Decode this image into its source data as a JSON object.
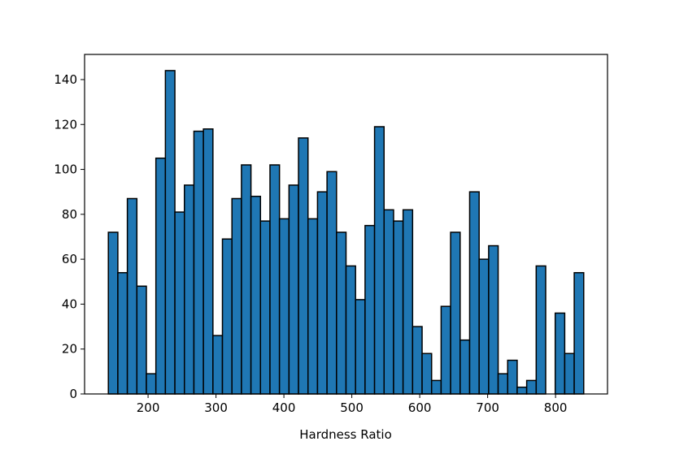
{
  "chart_data": {
    "type": "histogram",
    "x_label": "Hardness Ratio",
    "bins": [
      141.5,
      155.5,
      169.5,
      183.5,
      197.5,
      211.5,
      225.5,
      239.5,
      253.5,
      267.5,
      281.5,
      295.5,
      309.5,
      323.5,
      337.5,
      351.5,
      365.5,
      379.5,
      393.5,
      407.5,
      421.5,
      435.5,
      449.5,
      463.5,
      477.5,
      491.5,
      505.5,
      519.5,
      533.5,
      547.5,
      561.5,
      575.5,
      589.5,
      603.5,
      617.5,
      631.5,
      645.5,
      659.5,
      673.5,
      687.5,
      701.5,
      715.5,
      729.5,
      743.5,
      757.5,
      771.5,
      785.5,
      799.5,
      813.5,
      827.5,
      841.5
    ],
    "values": [
      72,
      54,
      87,
      48,
      9,
      105,
      144,
      81,
      93,
      117,
      118,
      26,
      69,
      87,
      102,
      88,
      77,
      102,
      78,
      93,
      114,
      78,
      90,
      99,
      72,
      57,
      42,
      75,
      119,
      82,
      77,
      82,
      30,
      18,
      6,
      39,
      72,
      24,
      90,
      60,
      66,
      9,
      15,
      3,
      6,
      57,
      0,
      36,
      18,
      54
    ],
    "color": "#1f77b4",
    "edgecolor": "#000000",
    "xlim": [
      106.5,
      876.5
    ],
    "xticks": [
      200,
      300,
      400,
      500,
      600,
      700,
      800
    ],
    "ylim": [
      0,
      151.2
    ],
    "yticks": [
      0,
      20,
      40,
      60,
      80,
      100,
      120,
      140
    ]
  }
}
